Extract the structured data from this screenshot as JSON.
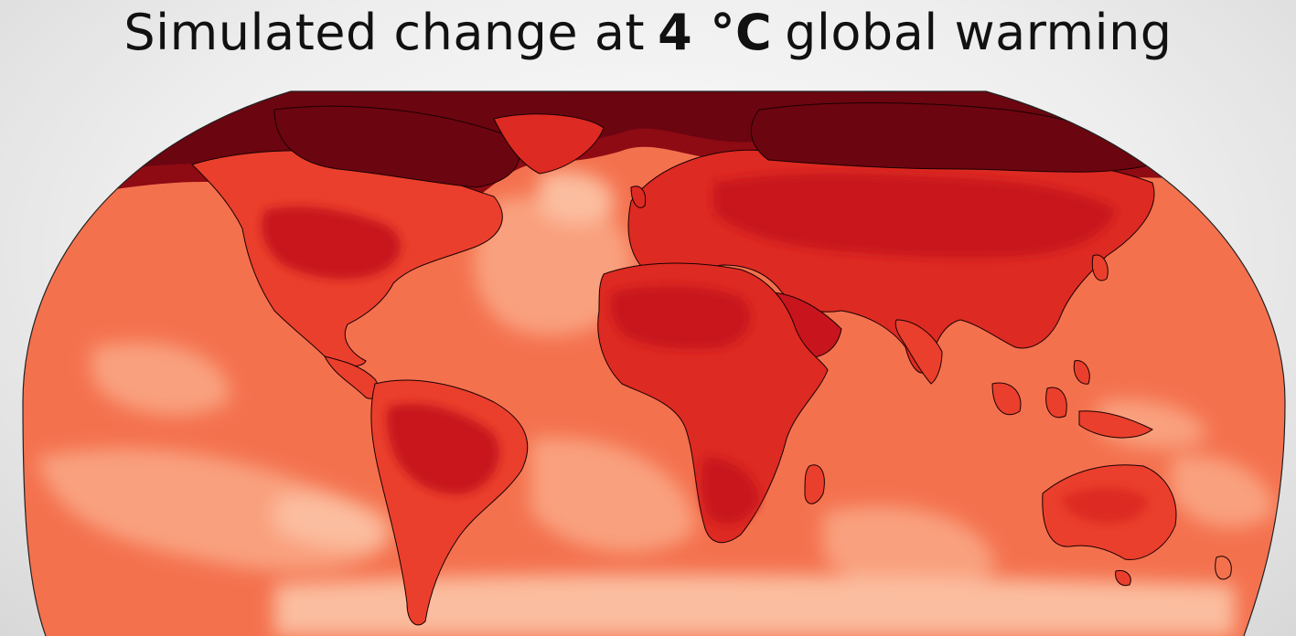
{
  "title": {
    "prefix": "Simulated change at",
    "value": "4 °C",
    "suffix": "global warming"
  },
  "colors": {
    "ocean_base": "#f4714e",
    "ocean_light": "#f9a07e",
    "ocean_pale": "#fbbd9f",
    "land_mid": "#ea3f2c",
    "land_warm": "#dd2a22",
    "land_hot": "#c8151d",
    "arctic": "#6b0510",
    "arctic_mid": "#8e0b14",
    "coast": "#1a0000"
  }
}
